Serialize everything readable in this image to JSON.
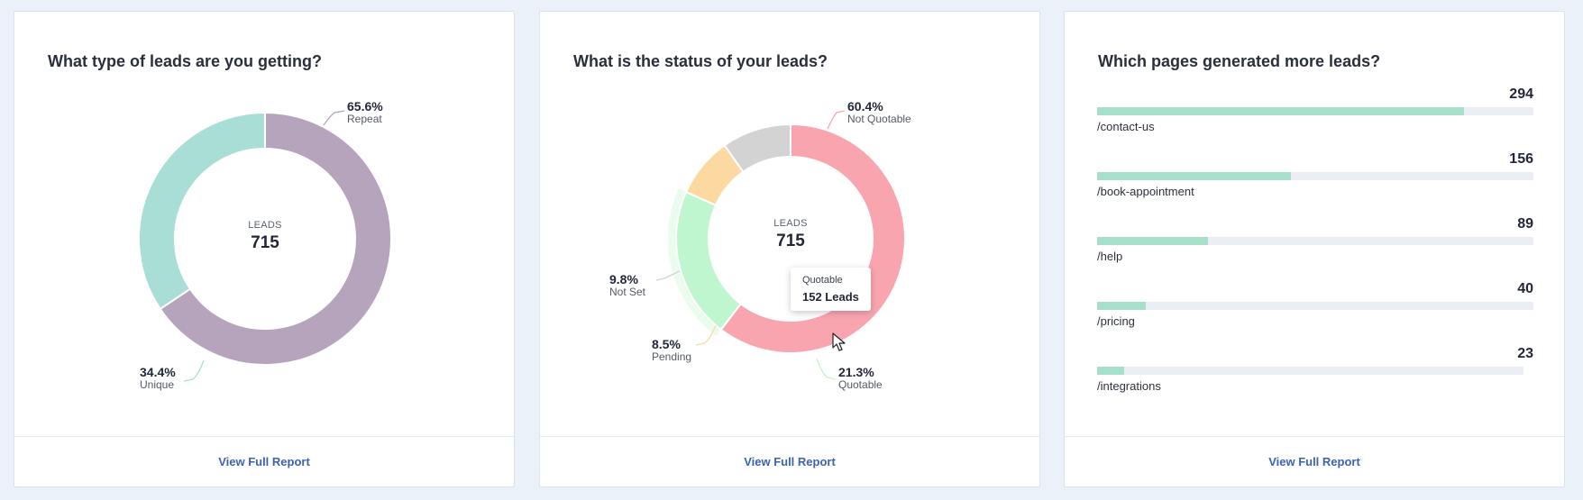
{
  "cards": [
    {
      "title": "What type of leads are you getting?",
      "footer_link": "View Full Report",
      "center": {
        "label": "LEADS",
        "value": "715"
      }
    },
    {
      "title": "What is the status of your leads?",
      "footer_link": "View Full Report",
      "center": {
        "label": "LEADS",
        "value": "715"
      },
      "tooltip": {
        "name": "Quotable",
        "value": "152 Leads"
      }
    },
    {
      "title": "Which pages generated more leads?",
      "footer_link": "View Full Report"
    }
  ],
  "chart_data": [
    {
      "type": "pie",
      "title": "What type of leads are you getting?",
      "center_label": "LEADS",
      "total": 715,
      "slices": [
        {
          "name": "Repeat",
          "percent": 65.6,
          "pct_label": "65.6%",
          "color": "#b5a4bc"
        },
        {
          "name": "Unique",
          "percent": 34.4,
          "pct_label": "34.4%",
          "color": "#a8ded6"
        }
      ]
    },
    {
      "type": "pie",
      "title": "What is the status of your leads?",
      "center_label": "LEADS",
      "total": 715,
      "slices": [
        {
          "name": "Not Quotable",
          "percent": 60.4,
          "pct_label": "60.4%",
          "color": "#f9a5b0"
        },
        {
          "name": "Quotable",
          "percent": 21.3,
          "pct_label": "21.3%",
          "color": "#bff5cf",
          "highlighted": true
        },
        {
          "name": "Pending",
          "percent": 8.5,
          "pct_label": "8.5%",
          "color": "#fdd9a2"
        },
        {
          "name": "Not Set",
          "percent": 9.8,
          "pct_label": "9.8%",
          "color": "#d3d3d3"
        }
      ]
    },
    {
      "type": "bar",
      "orientation": "horizontal",
      "title": "Which pages generated more leads?",
      "max": 294,
      "categories": [
        "/contact-us",
        "/book-appointment",
        "/help",
        "/pricing",
        "/integrations"
      ],
      "values": [
        294,
        156,
        89,
        40,
        23
      ],
      "value_labels": [
        "294",
        "156",
        "89",
        "40",
        "23"
      ],
      "fill_fraction": [
        0.84,
        0.445,
        0.255,
        0.112,
        0.063
      ],
      "color": "#a6e0ca",
      "track_color": "#ebeff5"
    }
  ]
}
